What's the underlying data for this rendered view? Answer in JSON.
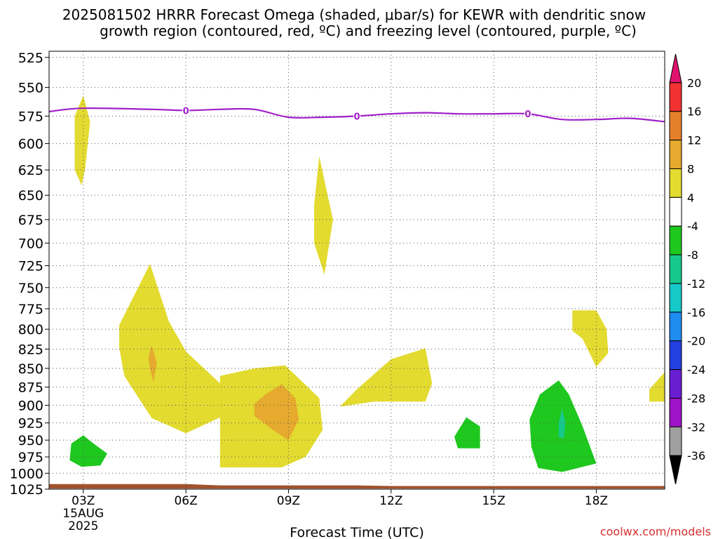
{
  "chart_data": {
    "type": "contour",
    "title_line1": "2025081502 HRRR Forecast Omega (shaded, μbar/s) for KEWR with dendritic snow",
    "title_line2": "growth region (contoured, red, ºC) and freezing level (contoured, purple, ºC)",
    "xlabel": "Forecast Time (UTC)",
    "ylabel": "",
    "watermark": "coolwx.com/models",
    "x_range_hours": [
      2,
      20
    ],
    "x_ticks": [
      {
        "hour": 3,
        "label": "03Z",
        "sub1": "15AUG",
        "sub2": "2025"
      },
      {
        "hour": 6,
        "label": "06Z"
      },
      {
        "hour": 9,
        "label": "09Z"
      },
      {
        "hour": 12,
        "label": "12Z"
      },
      {
        "hour": 15,
        "label": "15Z"
      },
      {
        "hour": 18,
        "label": "18Z"
      }
    ],
    "y_ticks": [
      525,
      550,
      575,
      600,
      625,
      650,
      675,
      700,
      725,
      750,
      775,
      800,
      825,
      850,
      875,
      900,
      925,
      950,
      975,
      1000,
      1025
    ],
    "y_range_hPa": [
      520,
      1025
    ],
    "grid": true,
    "colorbar": {
      "labels": [
        "20",
        "16",
        "12",
        "8",
        "4",
        "-4",
        "-8",
        "-12",
        "-16",
        "-20",
        "-24",
        "-28",
        "-32",
        "-36"
      ],
      "bands": [
        {
          "from": 20,
          "to": 24,
          "color": "#e0126e",
          "arrow": "up"
        },
        {
          "from": 16,
          "to": 20,
          "color": "#f23232"
        },
        {
          "from": 12,
          "to": 16,
          "color": "#e5802a"
        },
        {
          "from": 8,
          "to": 12,
          "color": "#e5aa2e"
        },
        {
          "from": 4,
          "to": 8,
          "color": "#e3db30"
        },
        {
          "from": -4,
          "to": 4,
          "color": "#ffffff"
        },
        {
          "from": -8,
          "to": -4,
          "color": "#1ec81e"
        },
        {
          "from": -12,
          "to": -8,
          "color": "#17c88c"
        },
        {
          "from": -16,
          "to": -12,
          "color": "#17c8c8"
        },
        {
          "from": -20,
          "to": -16,
          "color": "#1e8cf0"
        },
        {
          "from": -24,
          "to": -20,
          "color": "#2340e0"
        },
        {
          "from": -28,
          "to": -24,
          "color": "#6a1ed2"
        },
        {
          "from": -32,
          "to": -28,
          "color": "#a014c8"
        },
        {
          "from": -36,
          "to": -32,
          "color": "#a0a0a0"
        },
        {
          "from": -40,
          "to": -36,
          "color": "#000000",
          "arrow": "down"
        }
      ]
    },
    "freezing_level": {
      "color": "#a020c8",
      "label": "0",
      "label_hours": [
        6,
        11,
        16
      ],
      "points": [
        [
          2,
          571
        ],
        [
          3,
          568
        ],
        [
          5,
          569
        ],
        [
          6,
          570
        ],
        [
          7,
          569
        ],
        [
          8,
          569
        ],
        [
          9,
          576
        ],
        [
          10,
          576
        ],
        [
          11,
          575
        ],
        [
          12,
          573
        ],
        [
          13,
          572
        ],
        [
          14,
          573
        ],
        [
          15,
          573
        ],
        [
          16,
          573
        ],
        [
          17,
          578
        ],
        [
          18,
          578
        ],
        [
          19,
          577
        ],
        [
          20,
          580
        ]
      ]
    },
    "omega_regions": [
      {
        "value": 4,
        "color": "#e3db30",
        "points": [
          [
            3,
            557
          ],
          [
            3.2,
            580
          ],
          [
            3.05,
            625
          ],
          [
            2.95,
            640
          ],
          [
            2.75,
            625
          ],
          [
            2.75,
            575
          ]
        ]
      },
      {
        "value": 4,
        "color": "#e3db30",
        "points": [
          [
            9.9,
            612
          ],
          [
            10.3,
            675
          ],
          [
            10.05,
            735
          ],
          [
            9.75,
            700
          ],
          [
            9.75,
            660
          ]
        ]
      },
      {
        "value": 4,
        "color": "#e3db30",
        "points": [
          [
            4.95,
            723
          ],
          [
            5.5,
            790
          ],
          [
            6.0,
            828
          ],
          [
            7.0,
            870
          ],
          [
            7.05,
            916
          ],
          [
            6.0,
            940
          ],
          [
            5.0,
            918
          ],
          [
            4.2,
            860
          ],
          [
            4.05,
            823
          ],
          [
            4.05,
            795
          ]
        ]
      },
      {
        "value": 4,
        "color": "#e3db30",
        "points": [
          [
            7.0,
            860
          ],
          [
            8.0,
            850
          ],
          [
            8.9,
            846
          ],
          [
            9.9,
            890
          ],
          [
            10.0,
            935
          ],
          [
            9.5,
            975
          ],
          [
            8.8,
            991
          ],
          [
            7.0,
            991
          ],
          [
            7.0,
            938
          ]
        ]
      },
      {
        "value": 4,
        "color": "#e3db30",
        "points": [
          [
            11.0,
            878
          ],
          [
            12.0,
            838
          ],
          [
            13.0,
            824
          ],
          [
            13.2,
            870
          ],
          [
            13.0,
            895
          ],
          [
            11.5,
            895
          ],
          [
            10.5,
            902
          ]
        ]
      },
      {
        "value": 4,
        "color": "#e3db30",
        "points": [
          [
            17.3,
            777
          ],
          [
            18.0,
            777
          ],
          [
            18.3,
            800
          ],
          [
            18.35,
            830
          ],
          [
            18.0,
            848
          ],
          [
            17.6,
            812
          ],
          [
            17.3,
            802
          ]
        ]
      },
      {
        "value": 4,
        "color": "#e3db30",
        "points": [
          [
            20.0,
            855
          ],
          [
            20.0,
            895
          ],
          [
            19.55,
            895
          ],
          [
            19.55,
            878
          ]
        ]
      },
      {
        "value": 8,
        "color": "#e5aa2e",
        "points": [
          [
            5.0,
            820
          ],
          [
            5.15,
            843
          ],
          [
            5.1,
            856
          ],
          [
            5.05,
            868
          ],
          [
            4.95,
            850
          ],
          [
            4.9,
            836
          ]
        ]
      },
      {
        "value": 8,
        "color": "#e5aa2e",
        "points": [
          [
            8.3,
            886
          ],
          [
            8.8,
            871
          ],
          [
            9.2,
            890
          ],
          [
            9.3,
            920
          ],
          [
            9.0,
            950
          ],
          [
            8.6,
            937
          ],
          [
            8.0,
            915
          ],
          [
            8.0,
            898
          ]
        ]
      },
      {
        "value": -4,
        "color": "#1ec81e",
        "points": [
          [
            3.0,
            943
          ],
          [
            3.3,
            955
          ],
          [
            3.7,
            970
          ],
          [
            3.5,
            988
          ],
          [
            2.95,
            990
          ],
          [
            2.6,
            980
          ],
          [
            2.65,
            955
          ]
        ]
      },
      {
        "value": -4,
        "color": "#1ec81e",
        "points": [
          [
            14.2,
            917
          ],
          [
            14.6,
            930
          ],
          [
            14.6,
            962
          ],
          [
            13.95,
            962
          ],
          [
            13.85,
            945
          ]
        ]
      },
      {
        "value": -4,
        "color": "#1ec81e",
        "points": [
          [
            16.9,
            866
          ],
          [
            17.2,
            885
          ],
          [
            17.6,
            930
          ],
          [
            18.0,
            985
          ],
          [
            17.0,
            998
          ],
          [
            16.3,
            992
          ],
          [
            16.1,
            960
          ],
          [
            16.05,
            920
          ],
          [
            16.35,
            885
          ]
        ]
      },
      {
        "value": -8,
        "color": "#17c88c",
        "points": [
          [
            17.0,
            905
          ],
          [
            17.1,
            925
          ],
          [
            17.05,
            947
          ],
          [
            16.9,
            946
          ],
          [
            16.9,
            925
          ]
        ]
      }
    ],
    "terrain": {
      "color": "#a0522d",
      "top_points": [
        [
          2,
          1017
        ],
        [
          6,
          1017
        ],
        [
          7,
          1019
        ],
        [
          11,
          1019
        ],
        [
          12,
          1020
        ],
        [
          20,
          1020
        ]
      ],
      "bottom_hPa": 1024
    }
  }
}
